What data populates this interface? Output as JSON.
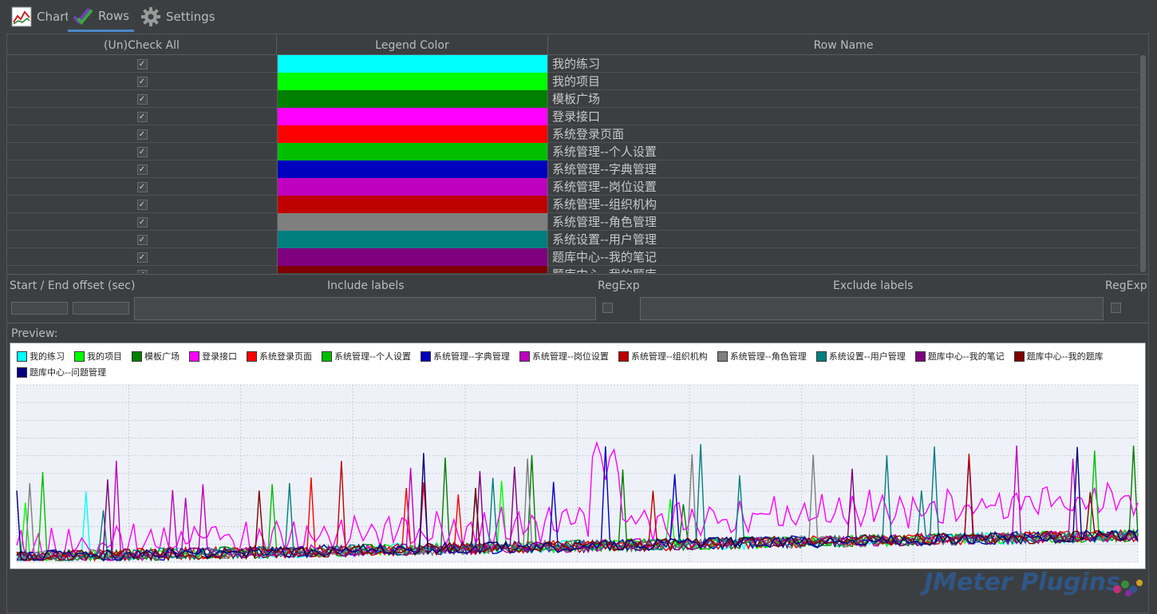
{
  "tabs": [
    {
      "label": "Chart",
      "icon": "line-chart-icon",
      "active": false
    },
    {
      "label": "Rows",
      "icon": "checkmarks-icon",
      "active": true
    },
    {
      "label": "Settings",
      "icon": "gear-icon",
      "active": false
    }
  ],
  "table": {
    "headers": {
      "check": "(Un)Check All",
      "color": "Legend Color",
      "name": "Row Name"
    },
    "rows": [
      {
        "checked": true,
        "color": "#00ffff",
        "name": "我的练习"
      },
      {
        "checked": true,
        "color": "#00ff00",
        "name": "我的项目"
      },
      {
        "checked": true,
        "color": "#007f00",
        "name": "模板广场"
      },
      {
        "checked": true,
        "color": "#ff00ff",
        "name": "登录接口"
      },
      {
        "checked": true,
        "color": "#ff0000",
        "name": "系统登录页面"
      },
      {
        "checked": true,
        "color": "#00bf00",
        "name": "系统管理--个人设置"
      },
      {
        "checked": true,
        "color": "#0000bf",
        "name": "系统管理--字典管理"
      },
      {
        "checked": true,
        "color": "#bf00bf",
        "name": "系统管理--岗位设置"
      },
      {
        "checked": true,
        "color": "#bf0000",
        "name": "系统管理--组织机构"
      },
      {
        "checked": true,
        "color": "#7f7f7f",
        "name": "系统管理--角色管理"
      },
      {
        "checked": true,
        "color": "#007f7f",
        "name": "系统设置--用户管理"
      },
      {
        "checked": true,
        "color": "#7f007f",
        "name": "题库中心--我的笔记"
      },
      {
        "checked": true,
        "color": "#7f0000",
        "name": "题库中心--我的题库"
      }
    ]
  },
  "filter": {
    "offset_label": "Start / End offset (sec)",
    "start_value": "",
    "end_value": "",
    "include_label": "Include labels",
    "include_value": "",
    "include_regexp_label": "RegExp",
    "include_regexp_checked": false,
    "exclude_label": "Exclude labels",
    "exclude_value": "",
    "exclude_regexp_label": "RegExp",
    "exclude_regexp_checked": false
  },
  "preview": {
    "label": "Preview:",
    "legend": [
      {
        "name": "我的练习",
        "color": "#00ffff"
      },
      {
        "name": "我的项目",
        "color": "#00ff00"
      },
      {
        "name": "模板广场",
        "color": "#007f00"
      },
      {
        "name": "登录接口",
        "color": "#ff00ff"
      },
      {
        "name": "系统登录页面",
        "color": "#ff0000"
      },
      {
        "name": "系统管理--个人设置",
        "color": "#00bf00"
      },
      {
        "name": "系统管理--字典管理",
        "color": "#0000bf"
      },
      {
        "name": "系统管理--岗位设置",
        "color": "#bf00bf"
      },
      {
        "name": "系统管理--组织机构",
        "color": "#bf0000"
      },
      {
        "name": "系统管理--角色管理",
        "color": "#7f7f7f"
      },
      {
        "name": "系统设置--用户管理",
        "color": "#007f7f"
      },
      {
        "name": "题库中心--我的笔记",
        "color": "#7f007f"
      },
      {
        "name": "题库中心--我的题库",
        "color": "#7f0000"
      },
      {
        "name": "题库中心--问题管理",
        "color": "#00007f"
      }
    ]
  },
  "watermark": "JMeter Plugins"
}
